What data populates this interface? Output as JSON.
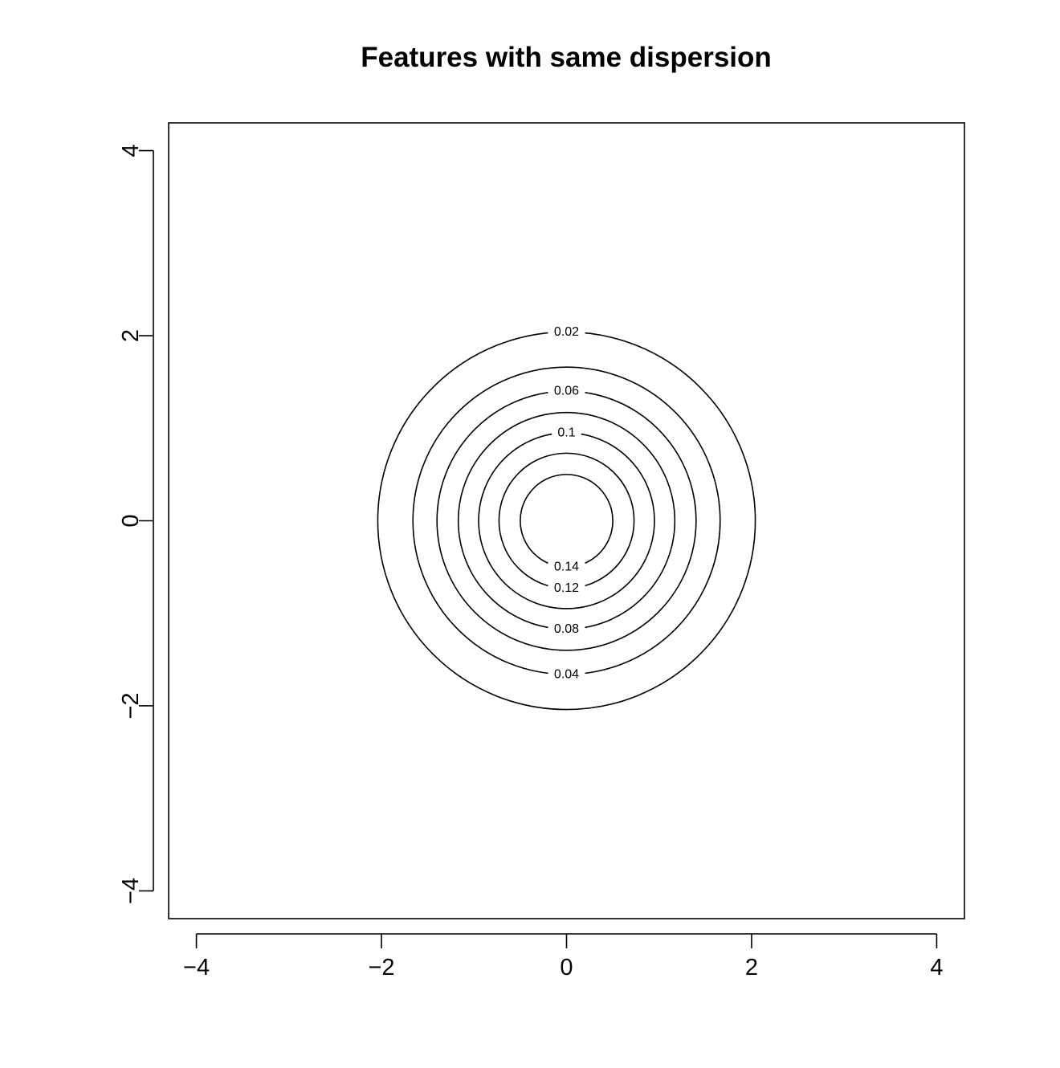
{
  "chart_data": {
    "type": "contour",
    "title": "Features with same dispersion",
    "xlabel": "",
    "ylabel": "",
    "xlim": [
      -4.3,
      4.3
    ],
    "ylim": [
      -4.3,
      4.3
    ],
    "xticks": [
      -4,
      -2,
      0,
      2,
      4
    ],
    "yticks": [
      -4,
      -2,
      0,
      2,
      4
    ],
    "x_tick_labels": [
      "−4",
      "−2",
      "0",
      "2",
      "4"
    ],
    "y_tick_labels": [
      "−4",
      "−2",
      "0",
      "2",
      "4"
    ],
    "center": [
      0,
      0
    ],
    "contours": [
      {
        "level": 0.02,
        "label": "0.02",
        "radius": 2.04,
        "label_position": "top"
      },
      {
        "level": 0.04,
        "label": "0.04",
        "radius": 1.66,
        "label_position": "bottom"
      },
      {
        "level": 0.06,
        "label": "0.06",
        "radius": 1.4,
        "label_position": "top"
      },
      {
        "level": 0.08,
        "label": "0.08",
        "radius": 1.17,
        "label_position": "bottom"
      },
      {
        "level": 0.1,
        "label": "0.1",
        "radius": 0.95,
        "label_position": "top"
      },
      {
        "level": 0.12,
        "label": "0.12",
        "radius": 0.73,
        "label_position": "bottom"
      },
      {
        "level": 0.14,
        "label": "0.14",
        "radius": 0.5,
        "label_position": "bottom"
      }
    ],
    "grid": false,
    "box": true
  }
}
